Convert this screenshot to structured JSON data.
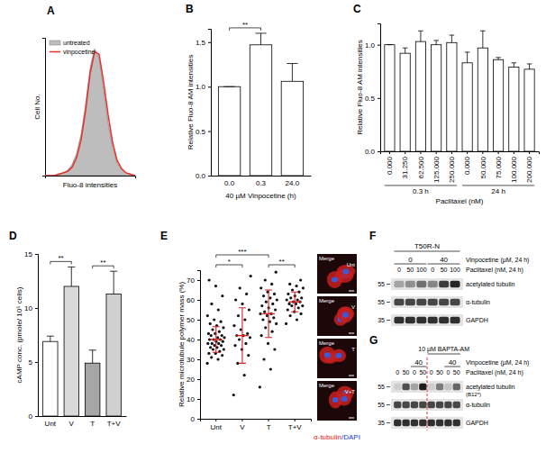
{
  "chart_data": [
    {
      "label": "A",
      "type": "area",
      "x_label": "Fluo-8 intensities",
      "y_label": "Cell No.",
      "x": [
        0,
        5,
        10,
        15,
        20,
        25,
        30,
        35,
        40,
        45,
        50,
        55,
        60,
        65,
        70,
        75,
        80,
        85,
        90,
        95,
        100
      ],
      "series": [
        {
          "name": "untreated",
          "type": "area",
          "color": "#bdbdbd",
          "values": [
            0,
            0,
            0,
            1,
            2,
            4,
            8,
            16,
            30,
            52,
            78,
            92,
            85,
            62,
            38,
            20,
            9,
            4,
            2,
            1,
            0
          ]
        },
        {
          "name": "vinpocetine",
          "type": "line",
          "color": "#e8312a",
          "values": [
            0,
            0,
            0,
            1,
            2,
            3,
            6,
            13,
            26,
            47,
            74,
            90,
            88,
            68,
            44,
            24,
            11,
            5,
            2,
            1,
            0
          ]
        }
      ],
      "xlim": [
        0,
        100
      ],
      "ylim": [
        0,
        100
      ],
      "xticks": [],
      "yticks": [],
      "tick_labels": false,
      "legend": "top-left"
    },
    {
      "label": "B",
      "type": "bar",
      "categories": [
        "0.0",
        "0.3",
        "24.0"
      ],
      "values": [
        1.0,
        1.47,
        1.06
      ],
      "errors": [
        0,
        0.13,
        0.2
      ],
      "color": "#ffffff",
      "ylim": [
        0,
        1.65
      ],
      "yticks": [
        {
          "value": 0,
          "label": "0.0"
        },
        0.5,
        {
          "value": 1,
          "label": "1.0"
        },
        1.5
      ],
      "x_label": "40 µM Vinpocetine (h)",
      "y_label": "Relative Fluo-8 AM intensities",
      "annotations": [
        {
          "text": "**",
          "from": 0,
          "to": 1
        }
      ]
    },
    {
      "label": "C",
      "type": "bar",
      "categories": [
        "0.000",
        "31.250",
        "62.500",
        "125.000",
        "250.000",
        "0.000",
        "50.000",
        "75.000",
        "100.000",
        "200.000"
      ],
      "values": [
        1.0,
        0.92,
        1.03,
        1.0,
        1.02,
        0.83,
        0.97,
        0.86,
        0.79,
        0.77
      ],
      "errors": [
        0,
        0.05,
        0.1,
        0.04,
        0.07,
        0.1,
        0.16,
        0.02,
        0.04,
        0.05
      ],
      "color": "#ffffff",
      "ylim": [
        0,
        1.2
      ],
      "yticks": [
        {
          "value": 0,
          "label": "0.0"
        },
        0.5,
        {
          "value": 1,
          "label": "1.0"
        }
      ],
      "groups": [
        {
          "text": "0.3 h",
          "from": 0,
          "to": 4
        },
        {
          "text": "24 h",
          "from": 5,
          "to": 9
        }
      ],
      "x_label": "Paclitaxel (nM)",
      "y_label": "Relative Fluo-8 AM intensities"
    },
    {
      "label": "D",
      "type": "bar",
      "categories": [
        "Unt",
        "V",
        "T",
        "T+V"
      ],
      "values": [
        6.9,
        12.0,
        4.9,
        11.3
      ],
      "errors": [
        0.5,
        1.8,
        1.2,
        2.1
      ],
      "colors": [
        "#ffffff",
        "#d9d9d9",
        "#a6a6a6",
        "#d0d0d0"
      ],
      "ylim": [
        0,
        15
      ],
      "yticks": [
        0,
        5,
        10,
        15
      ],
      "y_label": "cAMP conc. (pmole/ 10⁵ cells)",
      "annotations": [
        {
          "text": "**",
          "from": 0,
          "to": 1
        },
        {
          "text": "**",
          "from": 2,
          "to": 3
        }
      ]
    },
    {
      "label": "E",
      "type": "scatter",
      "marker": "circle",
      "color": "#111111",
      "categories": [
        "Unt",
        "V",
        "T",
        "T+V"
      ],
      "points": [
        [
          28,
          30,
          31,
          32,
          33,
          33,
          34,
          35,
          35,
          36,
          36,
          37,
          37,
          38,
          38,
          38,
          39,
          39,
          40,
          40,
          40,
          41,
          41,
          42,
          42,
          43,
          43,
          44,
          45,
          46,
          47,
          48,
          49,
          50,
          52,
          55,
          58,
          62,
          67,
          70
        ],
        [
          12,
          22,
          28,
          32,
          35,
          37,
          38,
          40,
          41,
          42,
          42,
          43,
          45,
          47,
          50,
          52,
          55,
          58,
          60,
          63,
          66,
          72
        ],
        [
          16,
          25,
          30,
          35,
          38,
          42,
          44,
          46,
          48,
          49,
          50,
          51,
          52,
          53,
          53,
          54,
          55,
          56,
          57,
          58,
          59,
          60,
          61,
          62,
          63,
          64,
          66,
          68,
          70,
          74
        ],
        [
          48,
          50,
          52,
          53,
          54,
          55,
          56,
          57,
          57,
          58,
          58,
          59,
          59,
          60,
          60,
          61,
          61,
          62,
          63,
          64,
          65,
          66,
          67,
          68,
          70
        ]
      ],
      "means": [
        40,
        42,
        53,
        59
      ],
      "sd": [
        6.5,
        14,
        12,
        5
      ],
      "ylim": [
        0,
        75
      ],
      "yticks": [
        0,
        10,
        20,
        30,
        40,
        50,
        60,
        70
      ],
      "y_label": "Relative microtubule polymer mass (%)",
      "annotations": [
        {
          "text": "*",
          "from": 0,
          "to": 1
        },
        {
          "text": "***",
          "from": 0,
          "to": 2
        },
        {
          "text": "**",
          "from": 2,
          "to": 3
        }
      ],
      "images": [
        {
          "label": "Merge",
          "tag": "Unt"
        },
        {
          "label": "Merge",
          "tag": "V"
        },
        {
          "label": "Merge",
          "tag": "T"
        },
        {
          "label": "Merge",
          "tag": "V+T"
        }
      ],
      "caption": [
        "α-tubulin",
        "/DAPI"
      ]
    },
    {
      "label": "F",
      "type": "blot",
      "cell_line": "T50R-N",
      "lane_rows": [
        {
          "label": "Vinpocetine (µM, 24 h)",
          "groups": [
            {
              "value": 0,
              "from": 0,
              "to": 2
            },
            {
              "value": 40,
              "from": 3,
              "to": 5
            }
          ]
        },
        {
          "label": "Paclitaxel (nM, 24 h)",
          "lanes": [
            0,
            50,
            100,
            0,
            50,
            100
          ]
        }
      ],
      "bands": [
        {
          "name": "acetylated tubulin",
          "mw": 55,
          "intensity": [
            0.3,
            0.4,
            0.55,
            0.45,
            0.8,
            0.9
          ]
        },
        {
          "name": "α-tubulin",
          "mw": 55,
          "intensity": [
            0.75,
            0.75,
            0.75,
            0.75,
            0.75,
            0.75
          ]
        },
        {
          "name": "GAPDH",
          "mw": 35,
          "intensity": [
            0.85,
            0.85,
            0.85,
            0.85,
            0.85,
            0.85
          ]
        }
      ]
    },
    {
      "label": "G",
      "type": "blot",
      "treatment": {
        "text": "10 µM BAPTA-AM",
        "from": 4,
        "to": 7
      },
      "lane_rows": [
        {
          "label": "Vinpocetine (µM, 24 h)",
          "groups": [
            {
              "value": 40,
              "from": 2,
              "to": 3
            },
            {
              "value": 40,
              "from": 6,
              "to": 7
            }
          ]
        },
        {
          "label": "Paclitaxel (nM, 24 h)",
          "lanes": [
            0,
            50,
            0,
            50,
            0,
            50,
            0,
            50
          ]
        }
      ],
      "bands": [
        {
          "name": "acetylated tubulin",
          "note": "(B12*)",
          "mw": 55,
          "intensity": [
            0.1,
            0.7,
            0.3,
            0.95,
            0.1,
            0.5,
            0.15,
            0.6
          ]
        },
        {
          "name": "α-tubulin",
          "mw": 55,
          "intensity": [
            0.75,
            0.75,
            0.75,
            0.75,
            0.75,
            0.75,
            0.75,
            0.75
          ]
        },
        {
          "name": "GAPDH",
          "mw": 35,
          "intensity": [
            0.85,
            0.85,
            0.85,
            0.85,
            0.85,
            0.85,
            0.85,
            0.85
          ]
        }
      ]
    }
  ]
}
